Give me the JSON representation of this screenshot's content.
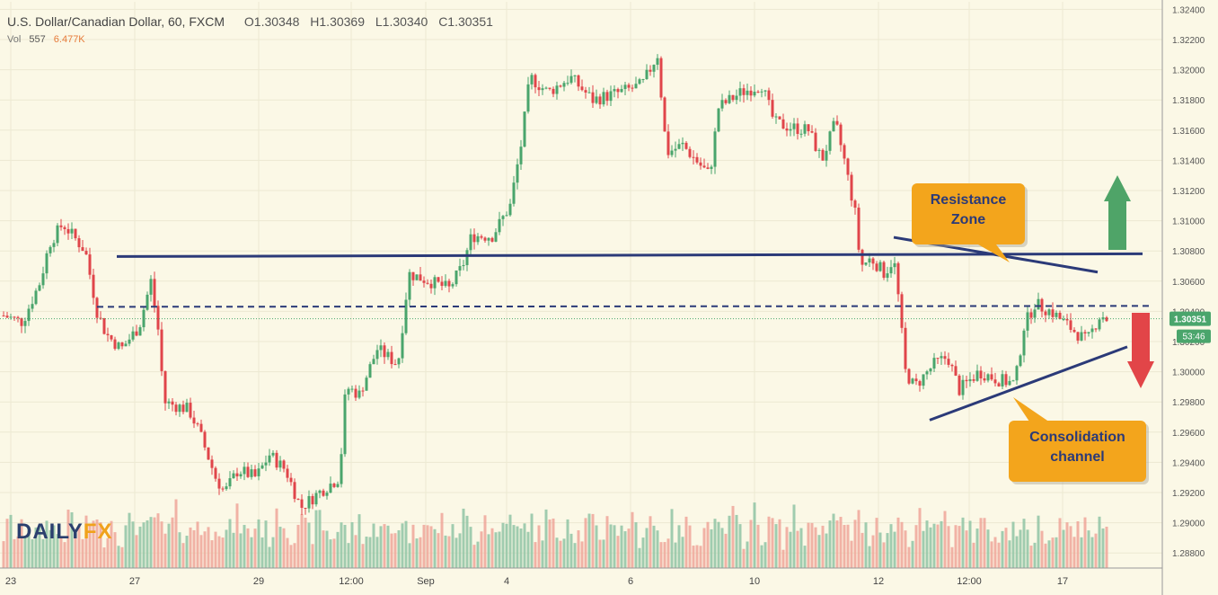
{
  "header": {
    "symbol": "U.S. Dollar/Canadian Dollar, 60, FXCM",
    "open": "O1.30348",
    "high": "H1.30369",
    "low": "L1.30340",
    "close": "C1.30351"
  },
  "volume_legend": {
    "label": "Vol",
    "value": "557",
    "ma": "6.477K"
  },
  "logo": {
    "part1": "DAILY",
    "part2": "FX"
  },
  "price_badge": {
    "price": "1.30351",
    "countdown": "53:46"
  },
  "colors": {
    "up": "#4aa56c",
    "down": "#e0454a",
    "vol_up": "#8fc4a4",
    "vol_down": "#eea699",
    "line": "#2b3a78",
    "callout": "#f3a51c",
    "arrow_up": "#4fa468",
    "arrow_down": "#e24548",
    "background": "#fbf8e6",
    "grid": "#ece9d2"
  },
  "chart_data": {
    "type": "candlestick",
    "y_range": [
      1.287,
      1.3245
    ],
    "y_ticks": [
      "1.32400",
      "1.32200",
      "1.32000",
      "1.31800",
      "1.31600",
      "1.31400",
      "1.31200",
      "1.31000",
      "1.30800",
      "1.30600",
      "1.30400",
      "1.30200",
      "1.30000",
      "1.29800",
      "1.29600",
      "1.29400",
      "1.29200",
      "1.29000",
      "1.28800"
    ],
    "x_ticks": [
      "23",
      "27",
      "29",
      "12:00",
      "Sep",
      "4",
      "6",
      "10",
      "12",
      "12:00",
      "17"
    ],
    "price_path": [
      [
        0,
        1.3038
      ],
      [
        25,
        1.3033
      ],
      [
        45,
        1.306
      ],
      [
        55,
        1.3085
      ],
      [
        70,
        1.3098
      ],
      [
        95,
        1.308
      ],
      [
        108,
        1.304
      ],
      [
        118,
        1.3025
      ],
      [
        135,
        1.3015
      ],
      [
        155,
        1.303
      ],
      [
        168,
        1.306
      ],
      [
        178,
        1.302
      ],
      [
        182,
        1.298
      ],
      [
        210,
        1.2975
      ],
      [
        222,
        1.296
      ],
      [
        240,
        1.293
      ],
      [
        250,
        1.292
      ],
      [
        265,
        1.2935
      ],
      [
        285,
        1.293
      ],
      [
        300,
        1.2945
      ],
      [
        318,
        1.2935
      ],
      [
        335,
        1.291
      ],
      [
        355,
        1.292
      ],
      [
        378,
        1.293
      ],
      [
        385,
        1.299
      ],
      [
        400,
        1.2985
      ],
      [
        420,
        1.3015
      ],
      [
        443,
        1.3005
      ],
      [
        455,
        1.3065
      ],
      [
        478,
        1.306
      ],
      [
        500,
        1.3055
      ],
      [
        515,
        1.307
      ],
      [
        525,
        1.309
      ],
      [
        548,
        1.309
      ],
      [
        568,
        1.311
      ],
      [
        580,
        1.315
      ],
      [
        590,
        1.3195
      ],
      [
        610,
        1.3185
      ],
      [
        635,
        1.3195
      ],
      [
        660,
        1.318
      ],
      [
        690,
        1.3185
      ],
      [
        715,
        1.319
      ],
      [
        732,
        1.321
      ],
      [
        742,
        1.3145
      ],
      [
        760,
        1.315
      ],
      [
        775,
        1.314
      ],
      [
        790,
        1.313
      ],
      [
        800,
        1.3175
      ],
      [
        825,
        1.3185
      ],
      [
        848,
        1.319
      ],
      [
        862,
        1.3165
      ],
      [
        880,
        1.3162
      ],
      [
        900,
        1.316
      ],
      [
        915,
        1.314
      ],
      [
        930,
        1.3165
      ],
      [
        940,
        1.314
      ],
      [
        952,
        1.3105
      ],
      [
        958,
        1.307
      ],
      [
        970,
        1.3075
      ],
      [
        985,
        1.3065
      ],
      [
        995,
        1.3075
      ],
      [
        1000,
        1.305
      ],
      [
        1008,
        1.3
      ],
      [
        1018,
        1.299
      ],
      [
        1040,
        1.3005
      ],
      [
        1055,
        1.301
      ],
      [
        1068,
        1.2988
      ],
      [
        1090,
        1.3
      ],
      [
        1110,
        1.2995
      ],
      [
        1130,
        1.2992
      ],
      [
        1140,
        1.303
      ],
      [
        1152,
        1.3045
      ],
      [
        1170,
        1.304
      ],
      [
        1190,
        1.303
      ],
      [
        1210,
        1.302
      ],
      [
        1225,
        1.3038
      ],
      [
        1232,
        1.30351
      ]
    ],
    "volume_levels": [
      0.25,
      0.35,
      0.5,
      0.3,
      0.2,
      0.28,
      0.4,
      0.55,
      0.3,
      0.22,
      0.18,
      0.3,
      0.45,
      0.6,
      0.35,
      0.25,
      0.2,
      0.3,
      0.5,
      0.65,
      0.4,
      0.3,
      0.22,
      0.35,
      0.48,
      0.7,
      0.45,
      0.3,
      0.25,
      0.38,
      0.55,
      0.42,
      0.3,
      0.2,
      0.28,
      0.45,
      0.62,
      0.5,
      0.35,
      0.25,
      0.3,
      0.52,
      0.68,
      0.45,
      0.32,
      0.22,
      0.3,
      0.48,
      0.72,
      0.5,
      0.35,
      0.28,
      0.24,
      0.4,
      0.58,
      0.44,
      0.3,
      0.25,
      0.36,
      0.6,
      0.5,
      0.34,
      0.26,
      0.3,
      0.46,
      0.64,
      0.48,
      0.32,
      0.24,
      0.28,
      0.44,
      0.56,
      0.4,
      0.28,
      0.22,
      0.34,
      0.52,
      0.7,
      0.5,
      0.34,
      0.26,
      0.36,
      0.58,
      0.46,
      0.3,
      0.24,
      0.3,
      0.5,
      0.66,
      0.44,
      0.3,
      0.22
    ],
    "resistance_level": 1.30775,
    "dashed_level": 1.3043,
    "last_price": 1.30351,
    "channel": {
      "upper": [
        [
          995,
          1.3089
        ],
        [
          1222,
          1.3066
        ]
      ],
      "lower": [
        [
          1035,
          1.2968
        ],
        [
          1255,
          1.30165
        ]
      ]
    },
    "annotations": [
      {
        "id": "resistance",
        "lines": [
          "Resistance",
          "Zone"
        ]
      },
      {
        "id": "consolidation",
        "lines": [
          "Consolidation",
          "channel"
        ]
      }
    ]
  }
}
